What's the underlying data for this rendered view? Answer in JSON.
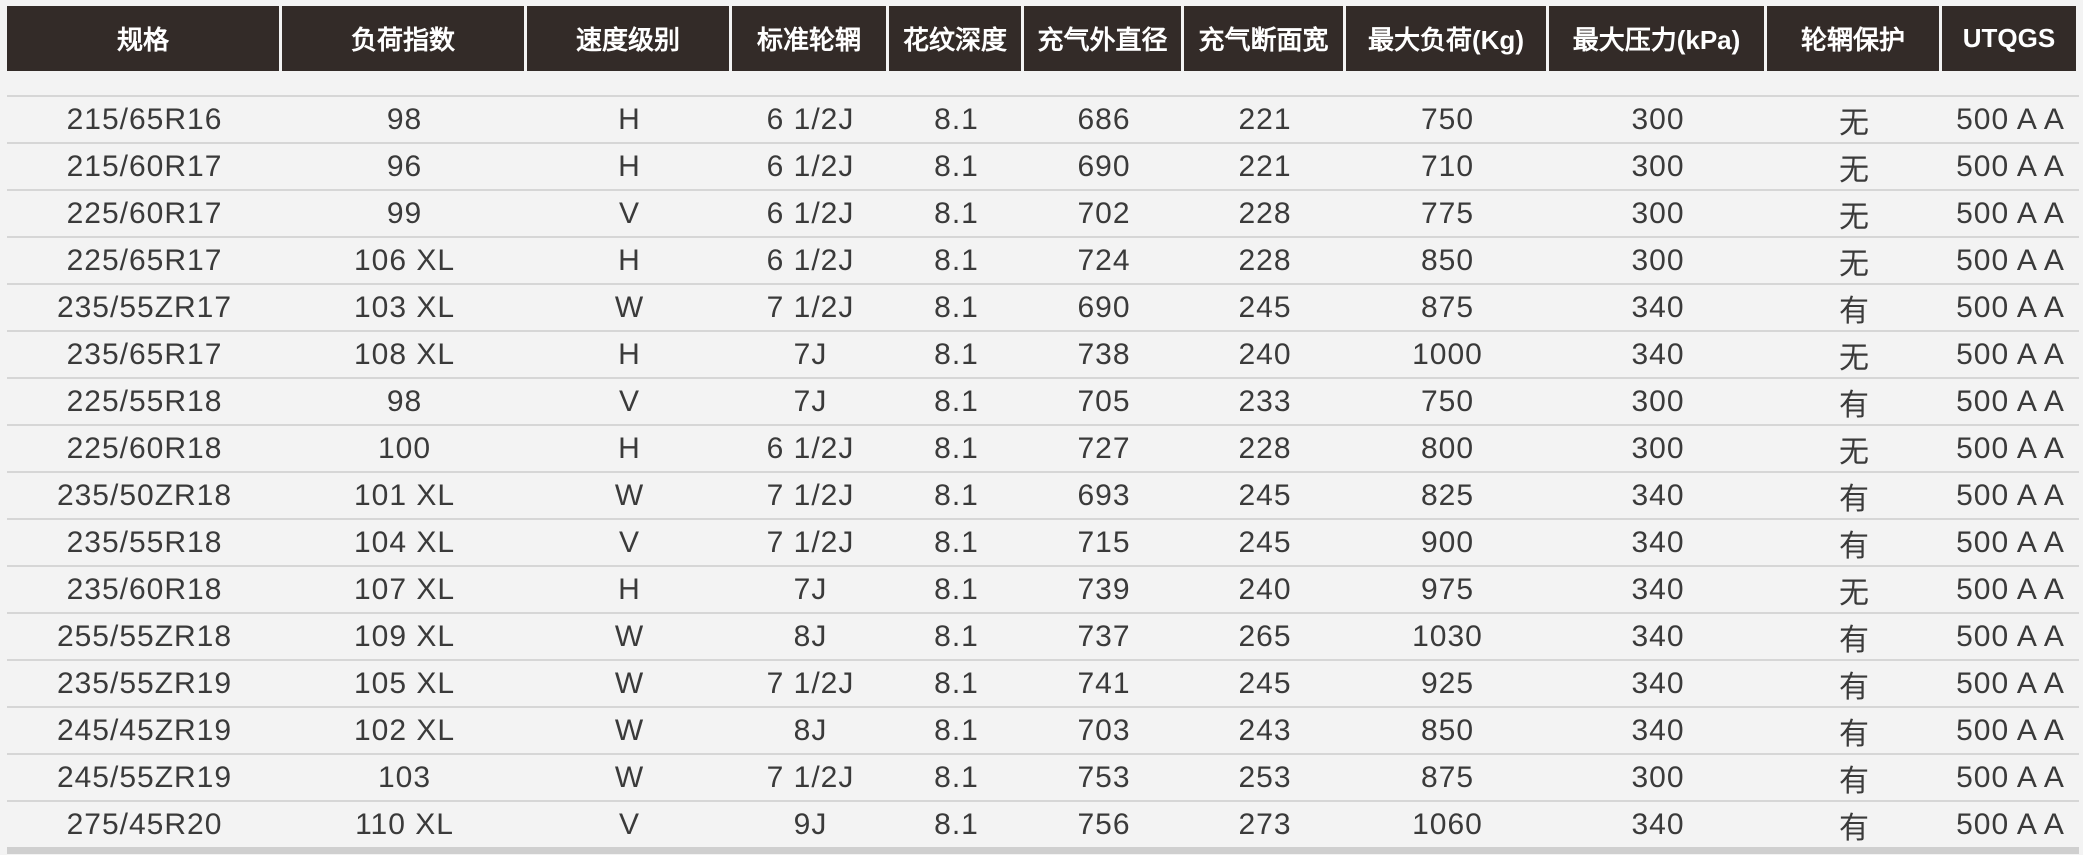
{
  "headers": [
    "规格",
    "负荷指数",
    "速度级别",
    "标准轮辋",
    "花纹深度",
    "充气外直径",
    "充气断面宽",
    "最大负荷(Kg)",
    "最大压力(kPa)",
    "轮辋保护",
    "UTQGS"
  ],
  "rows": [
    [
      "215/65R16",
      "98",
      "H",
      "6 1/2J",
      "8.1",
      "686",
      "221",
      "750",
      "300",
      "无",
      "500 A A"
    ],
    [
      "215/60R17",
      "96",
      "H",
      "6 1/2J",
      "8.1",
      "690",
      "221",
      "710",
      "300",
      "无",
      "500 A A"
    ],
    [
      "225/60R17",
      "99",
      "V",
      "6 1/2J",
      "8.1",
      "702",
      "228",
      "775",
      "300",
      "无",
      "500 A A"
    ],
    [
      "225/65R17",
      "106 XL",
      "H",
      "6 1/2J",
      "8.1",
      "724",
      "228",
      "850",
      "300",
      "无",
      "500 A A"
    ],
    [
      "235/55ZR17",
      "103 XL",
      "W",
      "7 1/2J",
      "8.1",
      "690",
      "245",
      "875",
      "340",
      "有",
      "500 A A"
    ],
    [
      "235/65R17",
      "108 XL",
      "H",
      "7J",
      "8.1",
      "738",
      "240",
      "1000",
      "340",
      "无",
      "500 A A"
    ],
    [
      "225/55R18",
      "98",
      "V",
      "7J",
      "8.1",
      "705",
      "233",
      "750",
      "300",
      "有",
      "500 A A"
    ],
    [
      "225/60R18",
      "100",
      "H",
      "6 1/2J",
      "8.1",
      "727",
      "228",
      "800",
      "300",
      "无",
      "500 A A"
    ],
    [
      "235/50ZR18",
      "101 XL",
      "W",
      "7 1/2J",
      "8.1",
      "693",
      "245",
      "825",
      "340",
      "有",
      "500 A A"
    ],
    [
      "235/55R18",
      "104 XL",
      "V",
      "7 1/2J",
      "8.1",
      "715",
      "245",
      "900",
      "340",
      "有",
      "500 A A"
    ],
    [
      "235/60R18",
      "107 XL",
      "H",
      "7J",
      "8.1",
      "739",
      "240",
      "975",
      "340",
      "无",
      "500 A A"
    ],
    [
      "255/55ZR18",
      "109 XL",
      "W",
      "8J",
      "8.1",
      "737",
      "265",
      "1030",
      "340",
      "有",
      "500 A A"
    ],
    [
      "235/55ZR19",
      "105 XL",
      "W",
      "7 1/2J",
      "8.1",
      "741",
      "245",
      "925",
      "340",
      "有",
      "500 A A"
    ],
    [
      "245/45ZR19",
      "102 XL",
      "W",
      "8J",
      "8.1",
      "703",
      "243",
      "850",
      "340",
      "有",
      "500 A A"
    ],
    [
      "245/55ZR19",
      "103",
      "W",
      "7 1/2J",
      "8.1",
      "753",
      "253",
      "875",
      "300",
      "有",
      "500 A A"
    ],
    [
      "275/45R20",
      "110 XL",
      "V",
      "9J",
      "8.1",
      "756",
      "273",
      "1060",
      "340",
      "有",
      "500 A A"
    ]
  ],
  "colors": {
    "header_bg": "#332b28",
    "header_text": "#ffffff",
    "page_bg": "#f3f3f3",
    "text": "#3a3a3a"
  }
}
